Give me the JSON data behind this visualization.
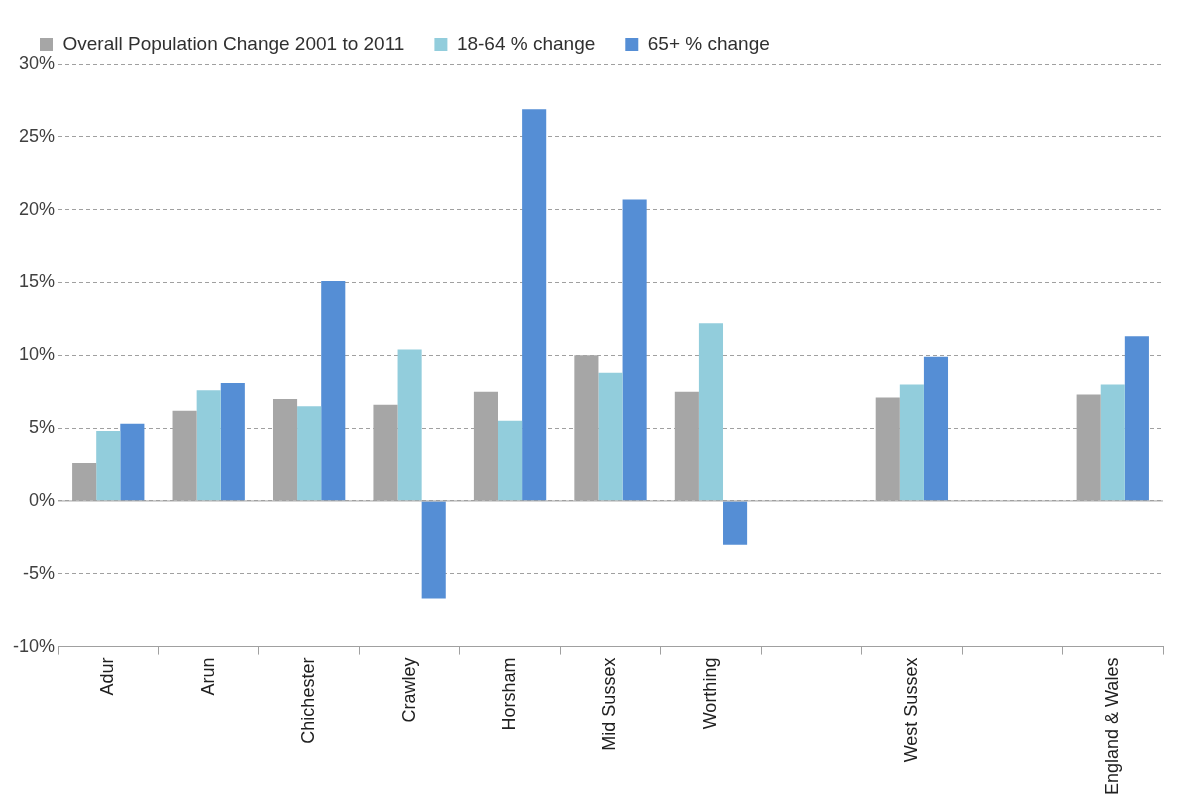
{
  "chart_data": {
    "type": "bar",
    "categories": [
      "Adur",
      "Arun",
      "Chichester",
      "Crawley",
      "Horsham",
      "Mid Sussex",
      "Worthing",
      null,
      "West Sussex",
      null,
      "England & Wales"
    ],
    "series": [
      {
        "name": "Overall Population Change 2001 to 2011",
        "color": "#a6a6a6",
        "values": [
          2.6,
          6.2,
          7.0,
          6.6,
          7.5,
          10.0,
          7.5,
          null,
          7.1,
          null,
          7.3
        ]
      },
      {
        "name": "18-64 % change",
        "color": "#92cddc",
        "values": [
          4.8,
          7.6,
          6.5,
          10.4,
          5.5,
          8.8,
          12.2,
          null,
          8.0,
          null,
          8.0
        ]
      },
      {
        "name": "65+ % change",
        "color": "#558ed5",
        "values": [
          5.3,
          8.1,
          15.1,
          -6.7,
          26.9,
          20.7,
          -3.0,
          null,
          9.9,
          null,
          11.3
        ]
      }
    ],
    "ylim": [
      -10,
      30
    ],
    "yticks": [
      {
        "value": -10,
        "label": "-10%"
      },
      {
        "value": -5,
        "label": "-5%"
      },
      {
        "value": 0,
        "label": "0%"
      },
      {
        "value": 5,
        "label": "5%"
      },
      {
        "value": 10,
        "label": "10%"
      },
      {
        "value": 15,
        "label": "15%"
      },
      {
        "value": 20,
        "label": "20%"
      },
      {
        "value": 25,
        "label": "25%"
      },
      {
        "value": 30,
        "label": "30%"
      }
    ],
    "grid": "y",
    "legend": "top"
  }
}
